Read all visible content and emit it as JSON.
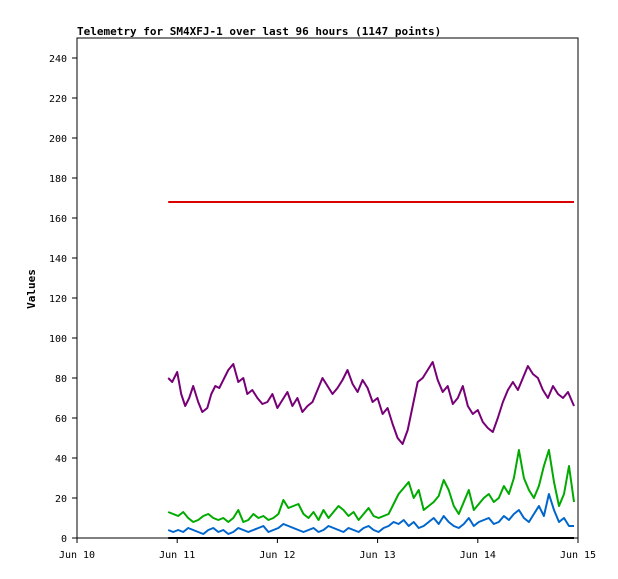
{
  "chart_data": {
    "type": "line",
    "title": "Telemetry for SM4XFJ-1 over last 96 hours (1147 points)",
    "xlabel": "",
    "ylabel": "Values",
    "x_ticks": [
      "Jun 10",
      "Jun 11",
      "Jun 12",
      "Jun 13",
      "Jun 14",
      "Jun 15"
    ],
    "xlim": [
      "Jun 10 00:00",
      "Jun 15 00:00"
    ],
    "ylim": [
      0,
      250
    ],
    "y_ticks": [
      0,
      20,
      40,
      60,
      80,
      100,
      120,
      140,
      160,
      180,
      200,
      220,
      240
    ],
    "grid": false,
    "series": [
      {
        "color": "#dd0000",
        "x_days": [
          0.91,
          4.96
        ],
        "values": [
          168,
          168
        ]
      },
      {
        "color": "#770077",
        "x_days": [
          0.91,
          0.95,
          1.0,
          1.04,
          1.08,
          1.12,
          1.16,
          1.21,
          1.25,
          1.3,
          1.34,
          1.38,
          1.42,
          1.47,
          1.51,
          1.56,
          1.61,
          1.66,
          1.7,
          1.75,
          1.8,
          1.85,
          1.9,
          1.95,
          2.0,
          2.05,
          2.1,
          2.15,
          2.2,
          2.25,
          2.3,
          2.35,
          2.4,
          2.45,
          2.5,
          2.55,
          2.6,
          2.65,
          2.7,
          2.75,
          2.8,
          2.85,
          2.9,
          2.95,
          3.0,
          3.05,
          3.1,
          3.15,
          3.2,
          3.25,
          3.3,
          3.35,
          3.4,
          3.45,
          3.5,
          3.55,
          3.6,
          3.65,
          3.7,
          3.75,
          3.8,
          3.85,
          3.9,
          3.95,
          4.0,
          4.05,
          4.1,
          4.15,
          4.2,
          4.25,
          4.3,
          4.35,
          4.4,
          4.45,
          4.5,
          4.55,
          4.6,
          4.65,
          4.7,
          4.75,
          4.8,
          4.85,
          4.9,
          4.96
        ],
        "values": [
          80,
          78,
          83,
          72,
          66,
          70,
          76,
          68,
          63,
          65,
          72,
          76,
          75,
          80,
          84,
          87,
          78,
          80,
          72,
          74,
          70,
          67,
          68,
          72,
          65,
          69,
          73,
          66,
          70,
          63,
          66,
          68,
          74,
          80,
          76,
          72,
          75,
          79,
          84,
          77,
          73,
          79,
          75,
          68,
          70,
          62,
          65,
          57,
          50,
          47,
          54,
          66,
          78,
          80,
          84,
          88,
          79,
          73,
          76,
          67,
          70,
          76,
          66,
          62,
          64,
          58,
          55,
          53,
          60,
          68,
          74,
          78,
          74,
          80,
          86,
          82,
          80,
          74,
          70,
          76,
          72,
          70,
          73,
          66
        ]
      },
      {
        "color": "#00aa00",
        "x_days": [
          0.91,
          0.96,
          1.01,
          1.06,
          1.11,
          1.16,
          1.21,
          1.26,
          1.31,
          1.36,
          1.41,
          1.46,
          1.51,
          1.56,
          1.61,
          1.66,
          1.71,
          1.76,
          1.81,
          1.86,
          1.91,
          1.96,
          2.01,
          2.06,
          2.11,
          2.16,
          2.21,
          2.26,
          2.31,
          2.36,
          2.41,
          2.46,
          2.51,
          2.56,
          2.61,
          2.66,
          2.71,
          2.76,
          2.81,
          2.86,
          2.91,
          2.96,
          3.01,
          3.06,
          3.11,
          3.16,
          3.21,
          3.26,
          3.31,
          3.36,
          3.41,
          3.46,
          3.51,
          3.56,
          3.61,
          3.66,
          3.71,
          3.76,
          3.81,
          3.86,
          3.91,
          3.96,
          4.01,
          4.06,
          4.11,
          4.16,
          4.21,
          4.26,
          4.31,
          4.36,
          4.41,
          4.46,
          4.51,
          4.56,
          4.61,
          4.66,
          4.71,
          4.76,
          4.81,
          4.86,
          4.91,
          4.96
        ],
        "values": [
          13,
          12,
          11,
          13,
          10,
          8,
          9,
          11,
          12,
          10,
          9,
          10,
          8,
          10,
          14,
          8,
          9,
          12,
          10,
          11,
          9,
          10,
          12,
          19,
          15,
          16,
          17,
          12,
          10,
          13,
          9,
          14,
          10,
          13,
          16,
          14,
          11,
          13,
          9,
          12,
          15,
          11,
          10,
          11,
          12,
          17,
          22,
          25,
          28,
          20,
          24,
          14,
          16,
          18,
          21,
          29,
          24,
          16,
          12,
          18,
          24,
          14,
          17,
          20,
          22,
          18,
          20,
          26,
          22,
          30,
          44,
          30,
          24,
          20,
          26,
          36,
          44,
          28,
          16,
          22,
          36,
          18
        ]
      },
      {
        "color": "#0066cc",
        "x_days": [
          0.91,
          0.96,
          1.01,
          1.06,
          1.11,
          1.16,
          1.21,
          1.26,
          1.31,
          1.36,
          1.41,
          1.46,
          1.51,
          1.56,
          1.61,
          1.66,
          1.71,
          1.76,
          1.81,
          1.86,
          1.91,
          1.96,
          2.01,
          2.06,
          2.11,
          2.16,
          2.21,
          2.26,
          2.31,
          2.36,
          2.41,
          2.46,
          2.51,
          2.56,
          2.61,
          2.66,
          2.71,
          2.76,
          2.81,
          2.86,
          2.91,
          2.96,
          3.01,
          3.06,
          3.11,
          3.16,
          3.21,
          3.26,
          3.31,
          3.36,
          3.41,
          3.46,
          3.51,
          3.56,
          3.61,
          3.66,
          3.71,
          3.76,
          3.81,
          3.86,
          3.91,
          3.96,
          4.01,
          4.06,
          4.11,
          4.16,
          4.21,
          4.26,
          4.31,
          4.36,
          4.41,
          4.46,
          4.51,
          4.56,
          4.61,
          4.66,
          4.71,
          4.76,
          4.81,
          4.86,
          4.91,
          4.96
        ],
        "values": [
          4,
          3,
          4,
          3,
          5,
          4,
          3,
          2,
          4,
          5,
          3,
          4,
          2,
          3,
          5,
          4,
          3,
          4,
          5,
          6,
          3,
          4,
          5,
          7,
          6,
          5,
          4,
          3,
          4,
          5,
          3,
          4,
          6,
          5,
          4,
          3,
          5,
          4,
          3,
          5,
          6,
          4,
          3,
          5,
          6,
          8,
          7,
          9,
          6,
          8,
          5,
          6,
          8,
          10,
          7,
          11,
          8,
          6,
          5,
          7,
          10,
          6,
          8,
          9,
          10,
          7,
          8,
          11,
          9,
          12,
          14,
          10,
          8,
          12,
          16,
          11,
          22,
          14,
          8,
          10,
          6,
          6
        ]
      },
      {
        "color": "#000000",
        "x_days": [
          0.91,
          4.96
        ],
        "values": [
          0,
          0
        ]
      }
    ]
  }
}
